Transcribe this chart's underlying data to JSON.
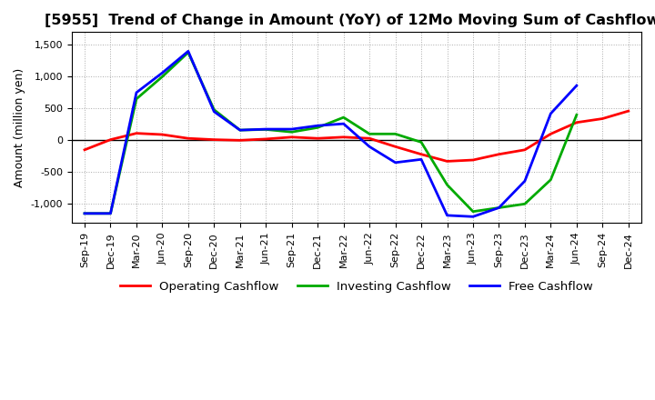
{
  "title": "[5955]  Trend of Change in Amount (YoY) of 12Mo Moving Sum of Cashflows",
  "ylabel": "Amount (million yen)",
  "x_labels": [
    "Sep-19",
    "Dec-19",
    "Mar-20",
    "Jun-20",
    "Sep-20",
    "Dec-20",
    "Mar-21",
    "Jun-21",
    "Sep-21",
    "Dec-21",
    "Mar-22",
    "Jun-22",
    "Sep-22",
    "Dec-22",
    "Mar-23",
    "Jun-23",
    "Sep-23",
    "Dec-23",
    "Mar-24",
    "Jun-24",
    "Sep-24",
    "Dec-24"
  ],
  "operating": [
    -150,
    10,
    110,
    90,
    30,
    10,
    0,
    20,
    50,
    30,
    50,
    30,
    -100,
    -220,
    -330,
    -310,
    -220,
    -150,
    100,
    280,
    340,
    460
  ],
  "investing": [
    -1150,
    -1150,
    650,
    1000,
    1380,
    480,
    160,
    170,
    130,
    200,
    360,
    100,
    100,
    -30,
    -700,
    -1120,
    -1060,
    -1000,
    -620,
    400,
    null,
    null
  ],
  "free": [
    -1150,
    -1150,
    750,
    1060,
    1400,
    450,
    160,
    175,
    175,
    230,
    260,
    -100,
    -350,
    -300,
    -1180,
    -1200,
    -1060,
    -640,
    420,
    860,
    null,
    null
  ],
  "ylim": [
    -1300,
    1700
  ],
  "yticks": [
    -1000,
    -500,
    0,
    500,
    1000,
    1500
  ],
  "operating_color": "#ff0000",
  "investing_color": "#00aa00",
  "free_color": "#0000ff",
  "bg_color": "#ffffff",
  "grid_color": "#aaaaaa",
  "title_fontsize": 11.5,
  "axis_fontsize": 9,
  "tick_fontsize": 8,
  "legend_fontsize": 9.5
}
